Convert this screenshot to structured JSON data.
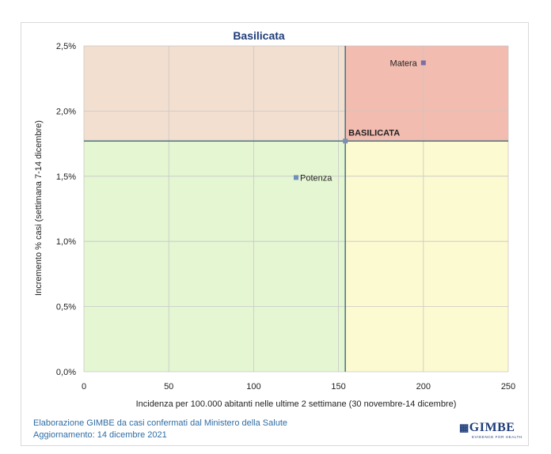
{
  "chart_data": {
    "type": "scatter",
    "title": "Basilicata",
    "xlabel": "Incidenza per 100.000 abitanti nelle ultime 2 settimane (30 novembre-14 dicembre)",
    "ylabel": "Incremento % casi (settimana 7-14 dicembre)",
    "xlim": [
      0,
      250
    ],
    "ylim": [
      0,
      2.5
    ],
    "x_ticks": [
      "0",
      "50",
      "100",
      "150",
      "200",
      "250"
    ],
    "x_tick_values": [
      0,
      50,
      100,
      150,
      200,
      250
    ],
    "y_ticks": [
      "0,0%",
      "0,5%",
      "1,0%",
      "1,5%",
      "2,0%",
      "2,5%"
    ],
    "y_tick_values": [
      0,
      0.5,
      1.0,
      1.5,
      2.0,
      2.5
    ],
    "grid": true,
    "reference_lines": {
      "x": 154,
      "y": 1.77
    },
    "quadrant_colors": {
      "top_left": "#f2dfd0",
      "top_right": "#f2bcb0",
      "bottom_left": "#e4f6d2",
      "bottom_right": "#fcfad0"
    },
    "points": [
      {
        "label": "Matera",
        "x": 200,
        "y": 2.37,
        "label_side": "left",
        "bold": false,
        "color": "#7b6fa5"
      },
      {
        "label": "BASILICATA",
        "x": 154,
        "y": 1.77,
        "label_side": "above-right",
        "bold": true,
        "color": "#7b8fb0"
      },
      {
        "label": "Potenza",
        "x": 125,
        "y": 1.49,
        "label_side": "right",
        "bold": false,
        "color": "#6f8fbf"
      }
    ]
  },
  "footer": {
    "line1": "Elaborazione GIMBE da casi confermati dal Ministero della Salute",
    "line2": "Aggiornamento: 14 dicembre 2021"
  },
  "logo": {
    "name": "GIMBE",
    "tagline": "EVIDENCE FOR HEALTH"
  },
  "colors": {
    "title": "#1f3d7a",
    "footer": "#2e6da4",
    "reference_line": "#3d6b7d"
  }
}
